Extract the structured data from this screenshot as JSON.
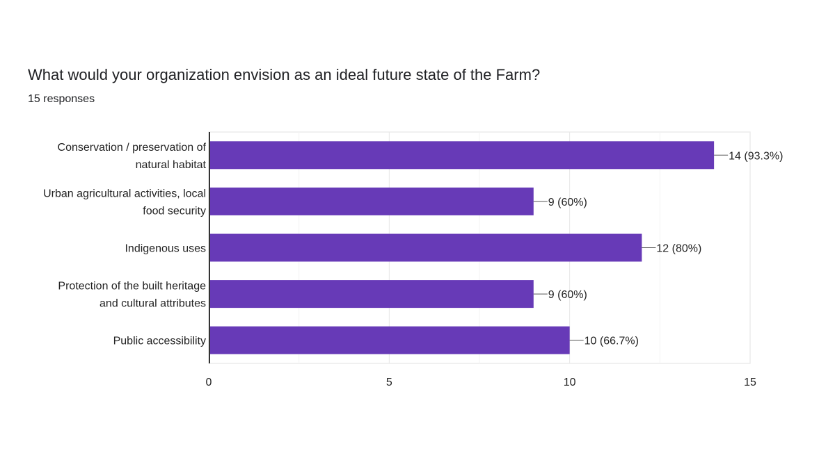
{
  "chart_data": {
    "type": "bar",
    "orientation": "horizontal",
    "title": "What would your organization envision as an ideal future state of the Farm?",
    "subtitle": "15 responses",
    "categories": [
      [
        "Conservation / preservation of",
        "natural habitat"
      ],
      [
        "Urban agricultural activities, local",
        "food security"
      ],
      [
        "Indigenous uses"
      ],
      [
        "Protection of the built heritage",
        "and cultural attributes"
      ],
      [
        "Public accessibility"
      ]
    ],
    "values": [
      14,
      9,
      12,
      9,
      10
    ],
    "data_labels": [
      "14 (93.3%)",
      "9 (60%)",
      "12 (80%)",
      "9 (60%)",
      "10 (66.7%)"
    ],
    "xlim": [
      0,
      15
    ],
    "x_ticks": [
      "0",
      "5",
      "10",
      "15"
    ],
    "grid": true,
    "bar_color": "#673ab7"
  }
}
